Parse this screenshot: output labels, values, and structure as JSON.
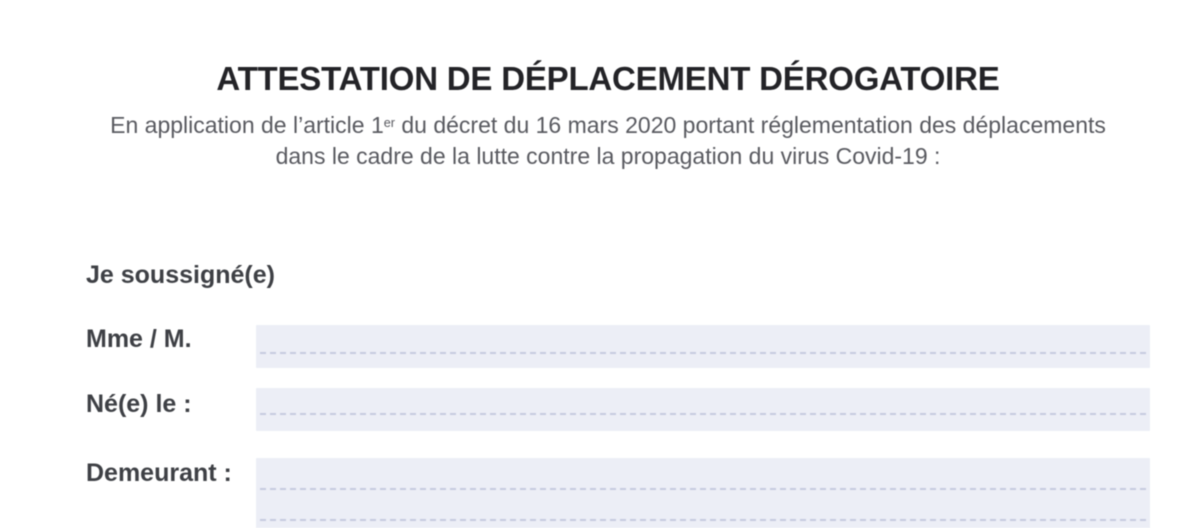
{
  "page": {
    "title": "ATTESTATION DE DÉPLACEMENT DÉROGATOIRE",
    "subtitle": {
      "part1": "En application de l’article 1",
      "superscript": "er",
      "part2": " du décret du 16 mars 2020 portant réglementation des déplacements dans le cadre de la lutte contre la propagation du virus Covid-19 :"
    },
    "form": {
      "intro_label": "Je soussigné(e)",
      "fields": [
        {
          "id": "civility-name",
          "label": "Mme / M.",
          "value": ""
        },
        {
          "id": "birth-date",
          "label": "Né(e) le :",
          "value": ""
        },
        {
          "id": "address",
          "label": "Demeurant :",
          "value": ""
        }
      ]
    },
    "colors": {
      "field_background": "#eceef6",
      "dotted_line": "#c7cbdf",
      "title_text": "#232327",
      "subtitle_text": "#595a60",
      "label_text": "#3e4045"
    }
  }
}
